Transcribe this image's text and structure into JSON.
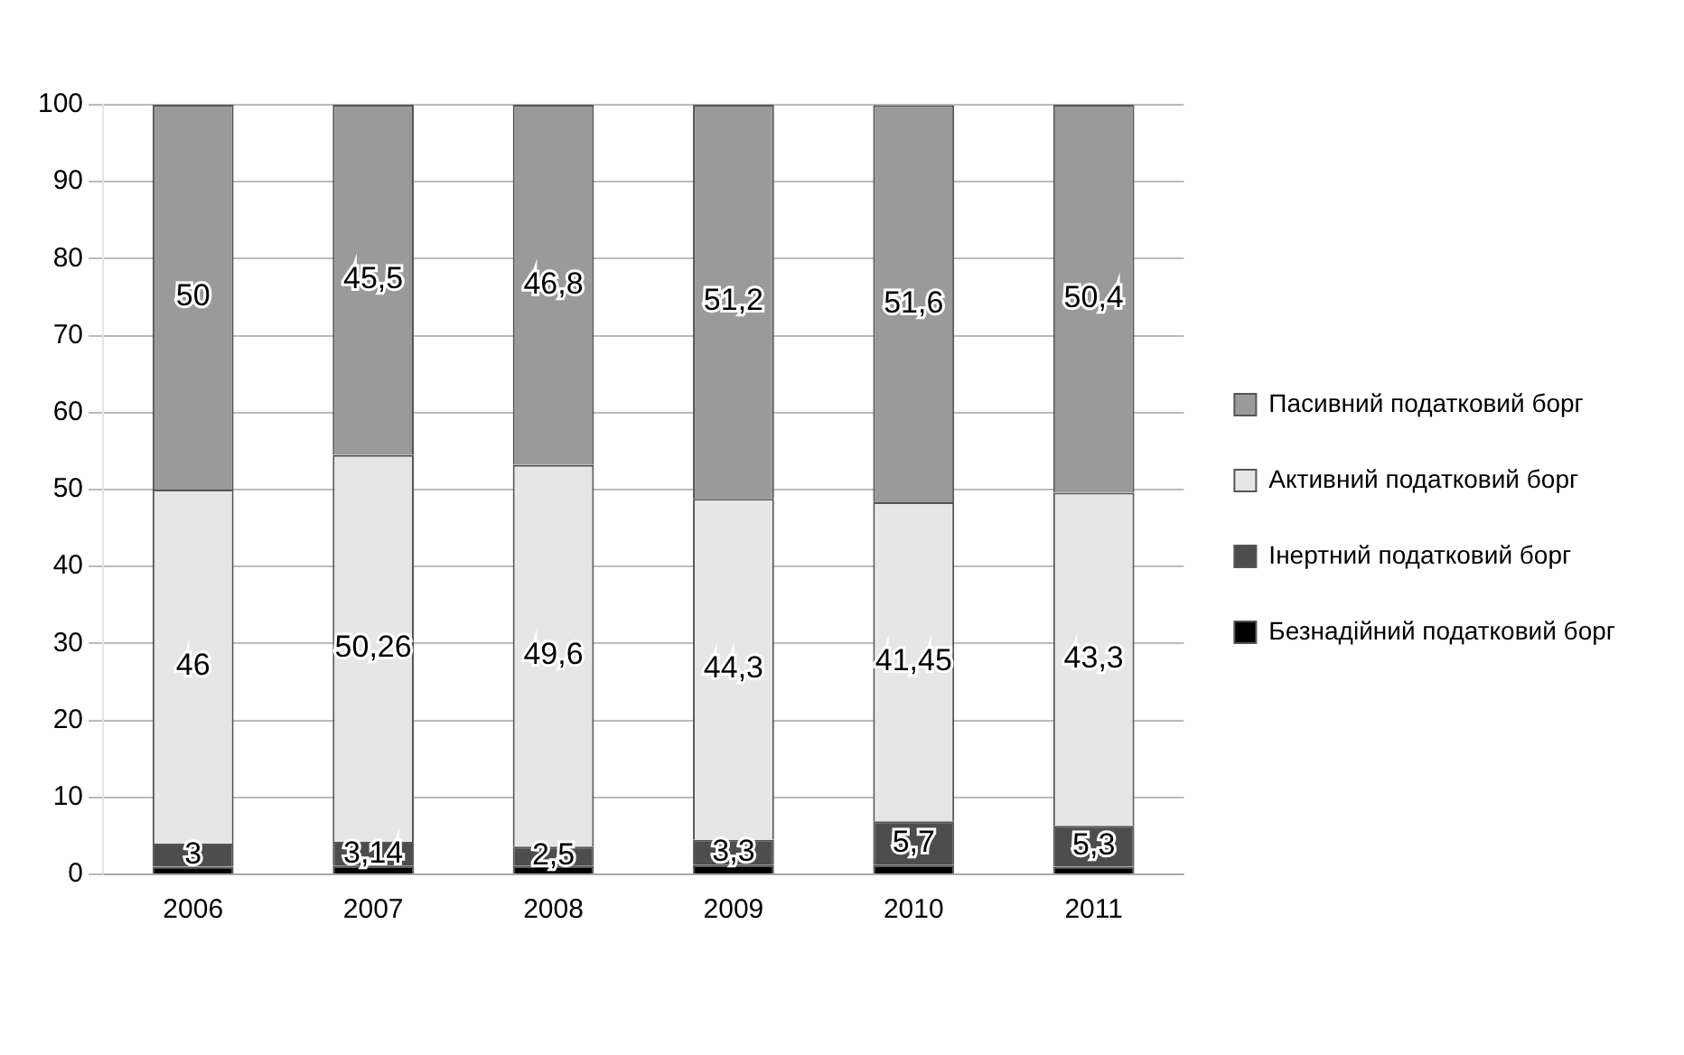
{
  "chart_data": {
    "type": "bar",
    "stacked": true,
    "categories": [
      "2006",
      "2007",
      "2008",
      "2009",
      "2010",
      "2011"
    ],
    "series": [
      {
        "name": "Безнадійний податковий борг",
        "color": "#000000",
        "values": [
          1,
          1.1,
          1.1,
          1.2,
          1.2,
          1
        ]
      },
      {
        "name": "Інертний податковий борг",
        "color": "#4d4d4d",
        "values": [
          3,
          3.14,
          2.5,
          3.3,
          5.7,
          5.3
        ],
        "value_labels": [
          "3",
          "3,14",
          "2,5",
          "3,3",
          "5,7",
          "5,3"
        ]
      },
      {
        "name": "Активний податковий борг",
        "color": "#e6e6e6",
        "values": [
          46,
          50.26,
          49.6,
          44.3,
          41.45,
          43.3
        ],
        "value_labels": [
          "46",
          "50,26",
          "49,6",
          "44,3",
          "41,45",
          "43,3"
        ]
      },
      {
        "name": "Пасивний податковий борг",
        "color": "#9a9a9a",
        "values": [
          50,
          45.5,
          46.8,
          51.2,
          51.6,
          50.4
        ],
        "value_labels": [
          "50",
          "45,5",
          "46,8",
          "51,2",
          "51,6",
          "50,4"
        ]
      }
    ],
    "ylim": [
      0,
      100
    ],
    "yticks": [
      0,
      10,
      20,
      30,
      40,
      50,
      60,
      70,
      80,
      90,
      100
    ],
    "grid": "y",
    "legend": "right"
  }
}
